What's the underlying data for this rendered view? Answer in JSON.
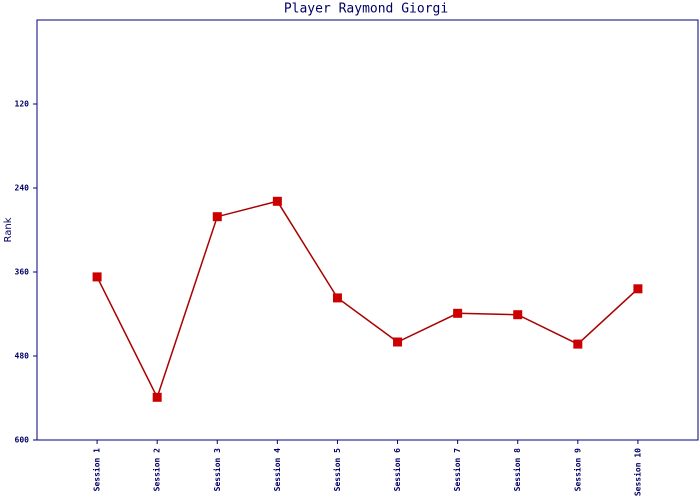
{
  "chart_data": {
    "type": "line",
    "title": "Player Raymond Giorgi",
    "y_label": "Rank",
    "categories": [
      "Session 1",
      "Session 2",
      "Session 3",
      "Session 4",
      "Session 5",
      "Session 6",
      "Session 7",
      "Session 8",
      "Session 9",
      "Session 10"
    ],
    "values": [
      367,
      539,
      281,
      259,
      397,
      460,
      419,
      421,
      463,
      384
    ],
    "color": "#aa0000",
    "marker_color": "#cc0000",
    "axis_color": "#000080",
    "ylim": [
      0,
      600
    ],
    "yticks": [
      120,
      240,
      360,
      480,
      600
    ],
    "y_inverted": true,
    "grid": false
  }
}
